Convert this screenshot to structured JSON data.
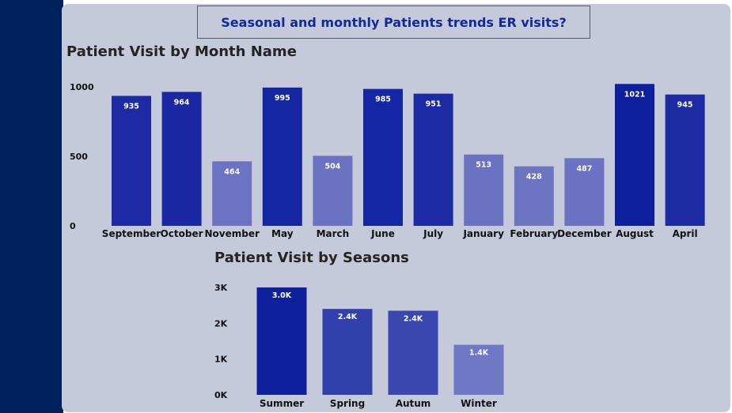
{
  "report": {
    "title": "Seasonal and monthly Patients trends ER visits?"
  },
  "chart_data": [
    {
      "type": "bar",
      "title": "Patient Visit by Month Name",
      "categories": [
        "September",
        "October",
        "November",
        "May",
        "March",
        "June",
        "July",
        "January",
        "February",
        "December",
        "August",
        "April"
      ],
      "values": [
        935,
        964,
        464,
        995,
        504,
        985,
        951,
        513,
        428,
        487,
        1021,
        945
      ],
      "data_labels": [
        "935",
        "964",
        "464",
        "995",
        "504",
        "985",
        "951",
        "513",
        "428",
        "487",
        "1021",
        "945"
      ],
      "y_ticks": [
        0,
        500,
        1000
      ],
      "y_tick_labels": [
        "0",
        "500",
        "1000"
      ],
      "ylim": [
        0,
        1000
      ],
      "grid": false,
      "colors": [
        "#1e2aa3",
        "#1a28a3",
        "#6b73c2",
        "#1526a3",
        "#6a72c1",
        "#1426a3",
        "#1c2aa3",
        "#6a72c1",
        "#6d75c3",
        "#6a72c1",
        "#0e1f9e",
        "#1d2ba3"
      ]
    },
    {
      "type": "bar",
      "title": "Patient Visit by Seasons",
      "categories": [
        "Summer",
        "Spring",
        "Autum",
        "Winter"
      ],
      "values": [
        3000,
        2400,
        2350,
        1400
      ],
      "data_labels": [
        "3.0K",
        "2.4K",
        "2.4K",
        "1.4K"
      ],
      "y_ticks": [
        0,
        1000,
        2000,
        3000
      ],
      "y_tick_labels": [
        "0K",
        "1K",
        "2K",
        "3K"
      ],
      "ylim": [
        0,
        3000
      ],
      "grid": false,
      "colors": [
        "#0f209c",
        "#3240ab",
        "#3a47ae",
        "#6f78c4"
      ]
    }
  ]
}
